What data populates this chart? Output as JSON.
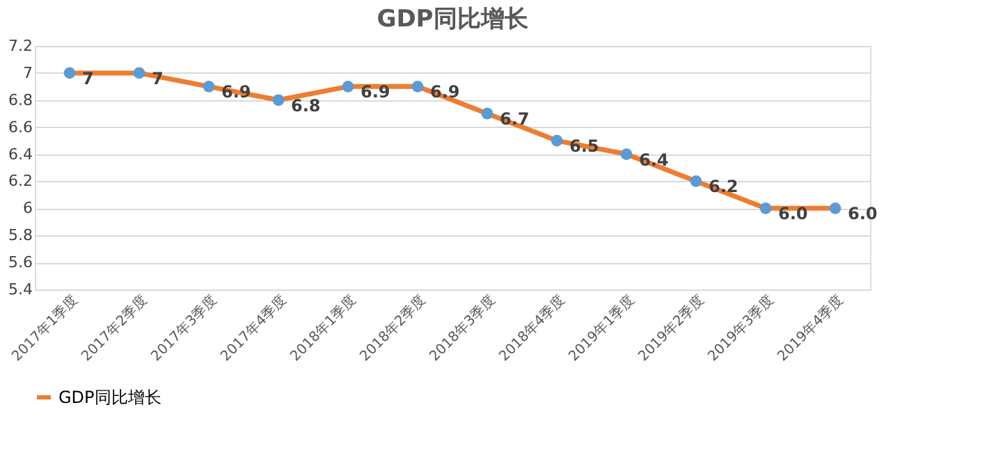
{
  "chart_data": {
    "type": "line",
    "title": "GDP同比增长",
    "categories": [
      "2017年1季度",
      "2017年2季度",
      "2017年3季度",
      "2017年4季度",
      "2018年1季度",
      "2018年2季度",
      "2018年3季度",
      "2018年4季度",
      "2019年1季度",
      "2019年2季度",
      "2019年3季度",
      "2019年4季度"
    ],
    "series": [
      {
        "name": "GDP同比增长",
        "color": "#ed7d31",
        "values": [
          7,
          7,
          6.9,
          6.8,
          6.9,
          6.9,
          6.7,
          6.5,
          6.4,
          6.2,
          6.0,
          6.0
        ],
        "value_labels": [
          "7",
          "7",
          "6.9",
          "6.8",
          "6.9",
          "6.9",
          "6.7",
          "6.5",
          "6.4",
          "6.2",
          "6.0",
          "6.0"
        ]
      }
    ],
    "ylim": [
      5.4,
      7.2
    ],
    "yticks": [
      5.4,
      5.6,
      5.8,
      6,
      6.2,
      6.4,
      6.6,
      6.8,
      7,
      7.2
    ],
    "grid": "y",
    "legend": "bottom",
    "marker": "circle",
    "line_style": "solid"
  }
}
